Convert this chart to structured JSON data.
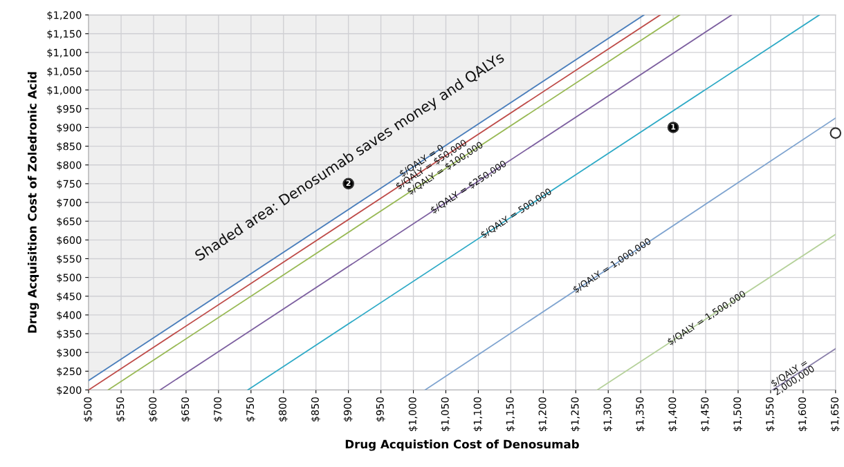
{
  "chart_data": {
    "type": "line",
    "xlabel": "Drug Acquistion Cost of Denosumab",
    "ylabel": "Drug Acquisition Cost of Zoledronic Acid",
    "xlim": [
      500,
      1650
    ],
    "ylim": [
      200,
      1200
    ],
    "xticks": [
      {
        "value": 500,
        "label": "$500"
      },
      {
        "value": 550,
        "label": "$550"
      },
      {
        "value": 600,
        "label": "$600"
      },
      {
        "value": 650,
        "label": "$650"
      },
      {
        "value": 700,
        "label": "$700"
      },
      {
        "value": 750,
        "label": "$750"
      },
      {
        "value": 800,
        "label": "$800"
      },
      {
        "value": 850,
        "label": "$850"
      },
      {
        "value": 900,
        "label": "$900"
      },
      {
        "value": 950,
        "label": "$950"
      },
      {
        "value": 1000,
        "label": "$1,000"
      },
      {
        "value": 1050,
        "label": "$1,050"
      },
      {
        "value": 1100,
        "label": "$1,100"
      },
      {
        "value": 1150,
        "label": "$1,150"
      },
      {
        "value": 1200,
        "label": "$1,200"
      },
      {
        "value": 1250,
        "label": "$1,250"
      },
      {
        "value": 1300,
        "label": "$1,300"
      },
      {
        "value": 1350,
        "label": "$1,350"
      },
      {
        "value": 1400,
        "label": "$1,400"
      },
      {
        "value": 1450,
        "label": "$1,450"
      },
      {
        "value": 1500,
        "label": "$1,500"
      },
      {
        "value": 1550,
        "label": "$1,550"
      },
      {
        "value": 1600,
        "label": "$1,600"
      },
      {
        "value": 1650,
        "label": "$1,650"
      }
    ],
    "yticks": [
      {
        "value": 200,
        "label": "$200"
      },
      {
        "value": 250,
        "label": "$250"
      },
      {
        "value": 300,
        "label": "$300"
      },
      {
        "value": 350,
        "label": "$350"
      },
      {
        "value": 400,
        "label": "$400"
      },
      {
        "value": 450,
        "label": "$450"
      },
      {
        "value": 500,
        "label": "$500"
      },
      {
        "value": 550,
        "label": "$550"
      },
      {
        "value": 600,
        "label": "$600"
      },
      {
        "value": 650,
        "label": "$650"
      },
      {
        "value": 700,
        "label": "$700"
      },
      {
        "value": 750,
        "label": "$750"
      },
      {
        "value": 800,
        "label": "$800"
      },
      {
        "value": 850,
        "label": "$850"
      },
      {
        "value": 900,
        "label": "$900"
      },
      {
        "value": 950,
        "label": "$950"
      },
      {
        "value": 1000,
        "label": "$1,000"
      },
      {
        "value": 1050,
        "label": "$1,050"
      },
      {
        "value": 1100,
        "label": "$1,100"
      },
      {
        "value": 1150,
        "label": "$1,150"
      },
      {
        "value": 1200,
        "label": "$1,200"
      }
    ],
    "grid": true,
    "series": [
      {
        "name": "$/QALY = 0",
        "color": "#4a7ebb",
        "x": [
          500,
          1355
        ],
        "values": [
          225,
          1200
        ]
      },
      {
        "name": "$/QALY = $50,000",
        "color": "#be4b48",
        "x": [
          500,
          1380
        ],
        "values": [
          200,
          1200
        ]
      },
      {
        "name": "$/QALY = $100,000",
        "color": "#98b954",
        "x": [
          530,
          1410
        ],
        "values": [
          200,
          1200
        ]
      },
      {
        "name": "$/QALY = $250,000",
        "color": "#7d60a0",
        "x": [
          610,
          1490
        ],
        "values": [
          200,
          1200
        ]
      },
      {
        "name": "$/QALY = 500,000",
        "color": "#2eaac6",
        "x": [
          745,
          1625
        ],
        "values": [
          200,
          1200
        ]
      },
      {
        "name": "$/QALY = 1,000,000",
        "color": "#7fa4d0",
        "x": [
          1018,
          1650
        ],
        "values": [
          200,
          925
        ]
      },
      {
        "name": "$/QALY = 1,500,000",
        "color": "#b5d19a",
        "x": [
          1283,
          1650
        ],
        "values": [
          200,
          615
        ]
      },
      {
        "name": "$/QALY =\n2,000,000",
        "color": "#8a7faa",
        "x": [
          1553,
          1650
        ],
        "values": [
          200,
          310
        ]
      },
      {
        "type": "scatter",
        "color": "#000000",
        "marker": "circle",
        "x": [
          1400,
          900
        ],
        "values": [
          900,
          750
        ]
      },
      {
        "type": "scatter",
        "color": "#ffffff",
        "marker": "circle",
        "x": [
          1650
        ],
        "values": [
          885
        ]
      }
    ],
    "annotations": [
      "Shaded area: Denosumab saves money and QALYs",
      {
        "text": "1",
        "x": 1400,
        "y": 900
      },
      {
        "text": "2",
        "x": 900,
        "y": 750
      }
    ]
  }
}
